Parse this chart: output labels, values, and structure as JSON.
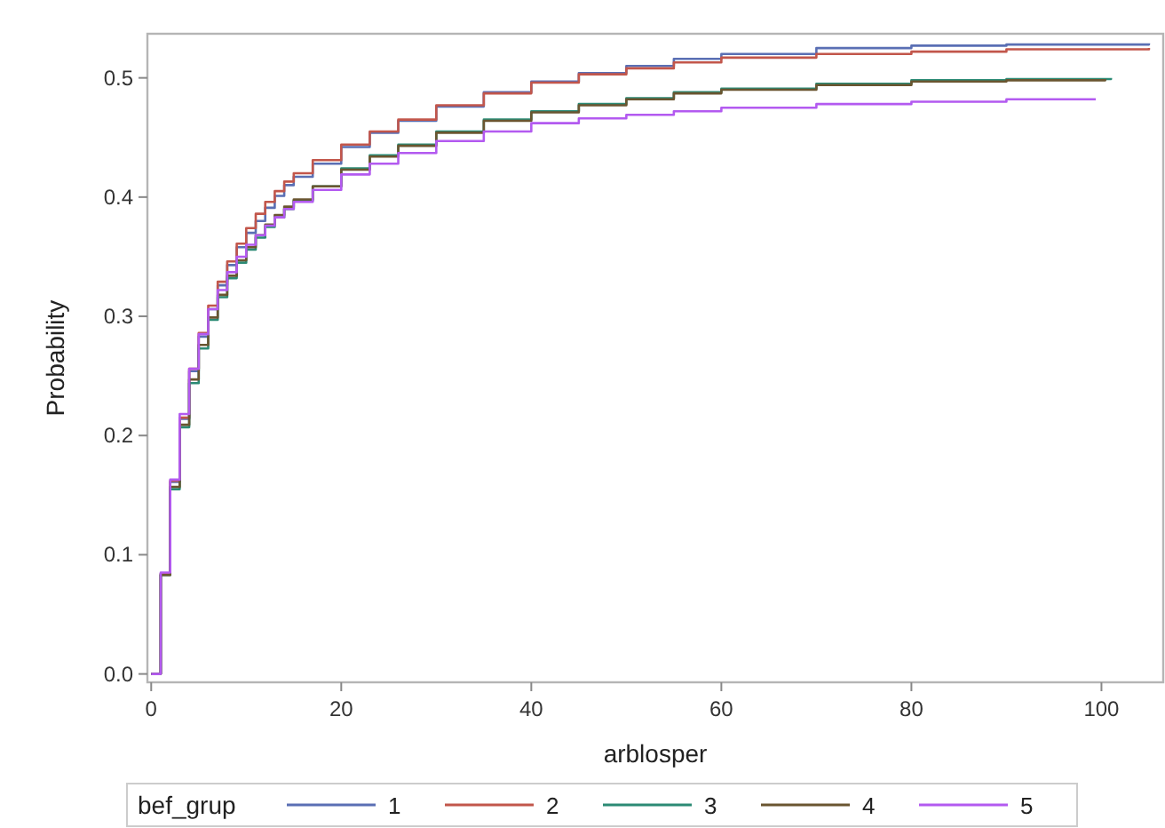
{
  "chart_data": {
    "type": "step",
    "xlabel": "arblosper",
    "ylabel": "Probability",
    "legend_title": "bef_grup",
    "legend": "bottom",
    "xlim": [
      -0.4,
      106.5
    ],
    "ylim": [
      -0.007,
      0.537
    ],
    "xticks": [
      0,
      20,
      40,
      60,
      80,
      100
    ],
    "yticks": [
      {
        "value": 0,
        "label": "0.0"
      },
      {
        "value": 0.1,
        "label": "0.1"
      },
      {
        "value": 0.2,
        "label": "0.2"
      },
      {
        "value": 0.3,
        "label": "0.3"
      },
      {
        "value": 0.4,
        "label": "0.4"
      },
      {
        "value": 0.5,
        "label": "0.5"
      }
    ],
    "series": [
      {
        "name": "1",
        "color": "#5a6fb4",
        "x": [
          0,
          1,
          2,
          3,
          4,
          5,
          6,
          7,
          8,
          9,
          10,
          11,
          12,
          13,
          14,
          15,
          17,
          20,
          23,
          26,
          30,
          35,
          40,
          45,
          50,
          55,
          60,
          70,
          80,
          90,
          105
        ],
        "values": [
          0,
          0.084,
          0.161,
          0.214,
          0.254,
          0.283,
          0.306,
          0.326,
          0.343,
          0.358,
          0.37,
          0.38,
          0.391,
          0.401,
          0.41,
          0.417,
          0.428,
          0.442,
          0.454,
          0.464,
          0.476,
          0.488,
          0.497,
          0.504,
          0.51,
          0.516,
          0.52,
          0.525,
          0.527,
          0.528,
          0.529
        ]
      },
      {
        "name": "2",
        "color": "#c2564b",
        "x": [
          0,
          1,
          2,
          3,
          4,
          5,
          6,
          7,
          8,
          9,
          10,
          11,
          12,
          13,
          14,
          15,
          17,
          20,
          23,
          26,
          30,
          35,
          40,
          45,
          50,
          55,
          60,
          70,
          80,
          90,
          105
        ],
        "values": [
          0,
          0.084,
          0.162,
          0.215,
          0.256,
          0.286,
          0.309,
          0.329,
          0.346,
          0.361,
          0.374,
          0.386,
          0.396,
          0.405,
          0.413,
          0.42,
          0.431,
          0.444,
          0.455,
          0.465,
          0.477,
          0.487,
          0.496,
          0.503,
          0.508,
          0.513,
          0.517,
          0.52,
          0.522,
          0.524,
          0.525
        ]
      },
      {
        "name": "3",
        "color": "#2b8a74",
        "x": [
          0,
          1,
          2,
          3,
          4,
          5,
          6,
          7,
          8,
          9,
          10,
          11,
          12,
          13,
          14,
          15,
          17,
          20,
          23,
          26,
          30,
          35,
          40,
          45,
          50,
          55,
          60,
          70,
          80,
          90,
          101
        ],
        "values": [
          0,
          0.083,
          0.155,
          0.207,
          0.244,
          0.273,
          0.297,
          0.316,
          0.332,
          0.345,
          0.356,
          0.366,
          0.375,
          0.383,
          0.39,
          0.397,
          0.409,
          0.424,
          0.435,
          0.444,
          0.455,
          0.465,
          0.472,
          0.478,
          0.483,
          0.488,
          0.491,
          0.495,
          0.498,
          0.499,
          0.5
        ]
      },
      {
        "name": "4",
        "color": "#6a5530",
        "x": [
          0,
          1,
          2,
          3,
          4,
          5,
          6,
          7,
          8,
          9,
          10,
          11,
          12,
          13,
          14,
          15,
          17,
          20,
          23,
          26,
          30,
          35,
          40,
          45,
          50,
          55,
          60,
          70,
          80,
          90,
          100.4
        ],
        "values": [
          0,
          0.083,
          0.157,
          0.209,
          0.247,
          0.276,
          0.299,
          0.318,
          0.334,
          0.347,
          0.358,
          0.368,
          0.377,
          0.385,
          0.392,
          0.398,
          0.409,
          0.423,
          0.434,
          0.443,
          0.454,
          0.464,
          0.471,
          0.477,
          0.482,
          0.487,
          0.49,
          0.494,
          0.497,
          0.498,
          0.499
        ]
      },
      {
        "name": "5",
        "color": "#b35af0",
        "x": [
          0,
          1,
          2,
          3,
          4,
          5,
          6,
          7,
          8,
          9,
          10,
          11,
          12,
          13,
          14,
          15,
          17,
          20,
          23,
          26,
          30,
          35,
          40,
          45,
          50,
          55,
          60,
          70,
          80,
          90,
          99.4
        ],
        "values": [
          0,
          0.085,
          0.163,
          0.218,
          0.256,
          0.285,
          0.306,
          0.322,
          0.337,
          0.35,
          0.36,
          0.368,
          0.376,
          0.383,
          0.39,
          0.396,
          0.406,
          0.419,
          0.428,
          0.437,
          0.447,
          0.455,
          0.462,
          0.466,
          0.469,
          0.472,
          0.475,
          0.478,
          0.48,
          0.482,
          0.482
        ]
      }
    ]
  }
}
